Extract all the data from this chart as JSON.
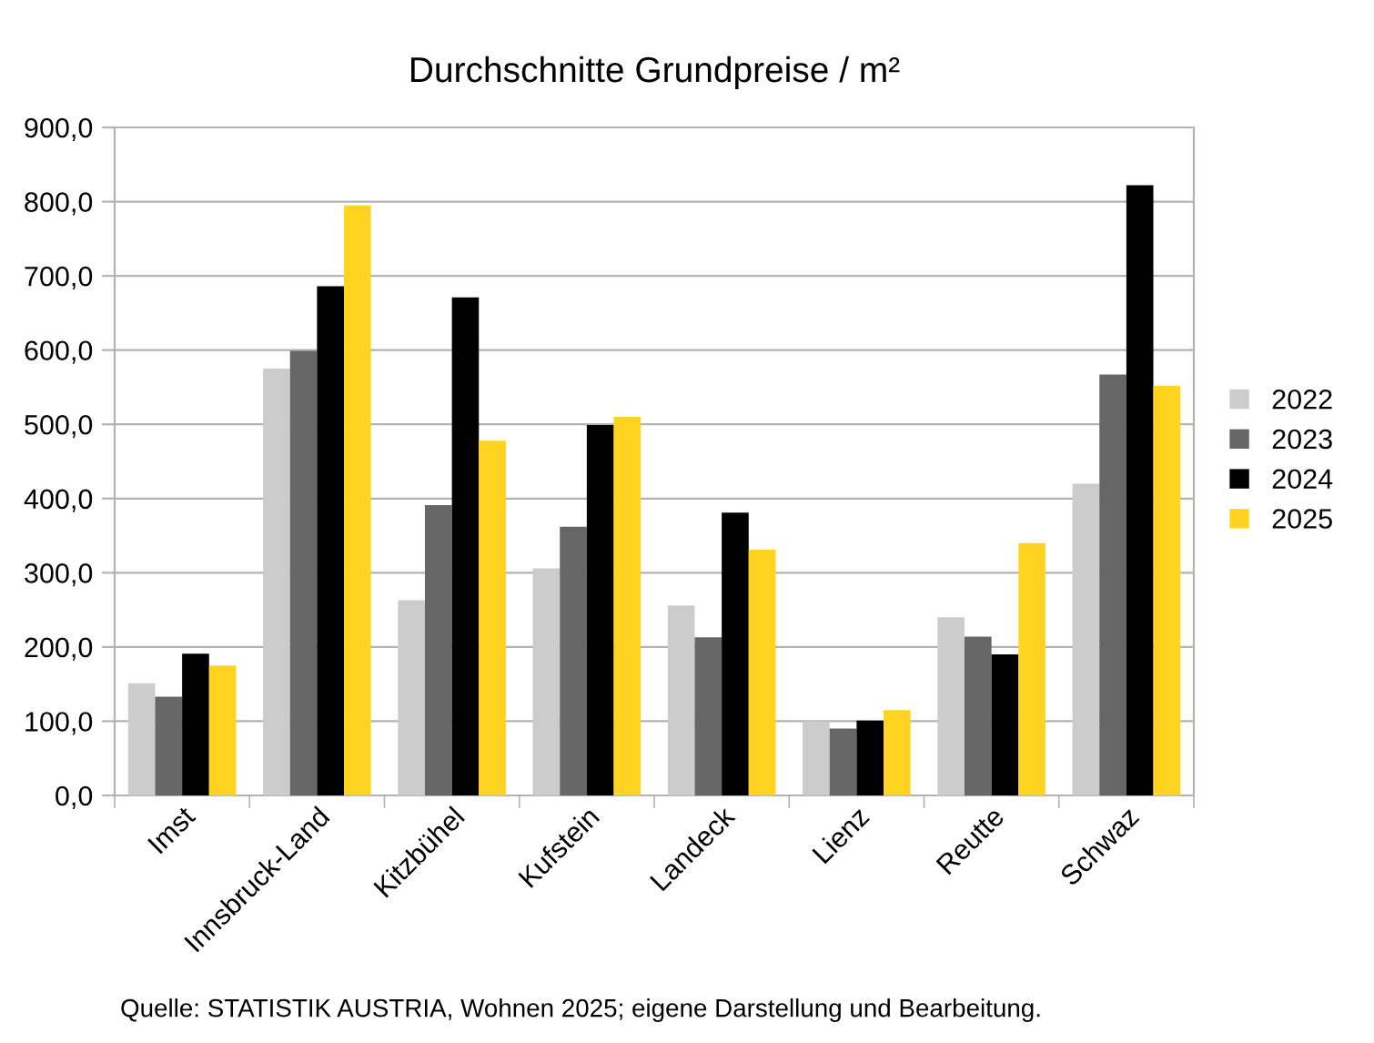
{
  "chart_data": {
    "type": "bar",
    "title": "Durchschnitte Grundpreise / m²",
    "categories": [
      "Imst",
      "Innsbruck-Land",
      "Kitzbühel",
      "Kufstein",
      "Landeck",
      "Lienz",
      "Reutte",
      "Schwaz"
    ],
    "series": [
      {
        "name": "2022",
        "color": "#cccccc",
        "values": [
          151,
          575,
          263,
          306,
          256,
          100,
          240,
          420
        ]
      },
      {
        "name": "2023",
        "color": "#666666",
        "values": [
          133,
          599,
          391,
          362,
          213,
          90,
          214,
          567
        ]
      },
      {
        "name": "2024",
        "color": "#000000",
        "values": [
          191,
          686,
          671,
          499,
          381,
          101,
          190,
          822
        ]
      },
      {
        "name": "2025",
        "color": "#ffd320",
        "values": [
          175,
          795,
          478,
          510,
          331,
          115,
          340,
          552
        ]
      }
    ],
    "ylim": [
      0,
      900
    ],
    "yticks": [
      {
        "value": 0,
        "label": "0,0"
      },
      {
        "value": 100,
        "label": "100,0"
      },
      {
        "value": 200,
        "label": "200,0"
      },
      {
        "value": 300,
        "label": "300,0"
      },
      {
        "value": 400,
        "label": "400,0"
      },
      {
        "value": 500,
        "label": "500,0"
      },
      {
        "value": 600,
        "label": "600,0"
      },
      {
        "value": 700,
        "label": "700,0"
      },
      {
        "value": 800,
        "label": "800,0"
      },
      {
        "value": 900,
        "label": "900,0"
      }
    ],
    "grid": "y",
    "legend": "right",
    "annotations": [
      "Quelle: STATISTIK AUSTRIA, Wohnen 2025; eigene Darstellung und Bearbeitung."
    ]
  }
}
